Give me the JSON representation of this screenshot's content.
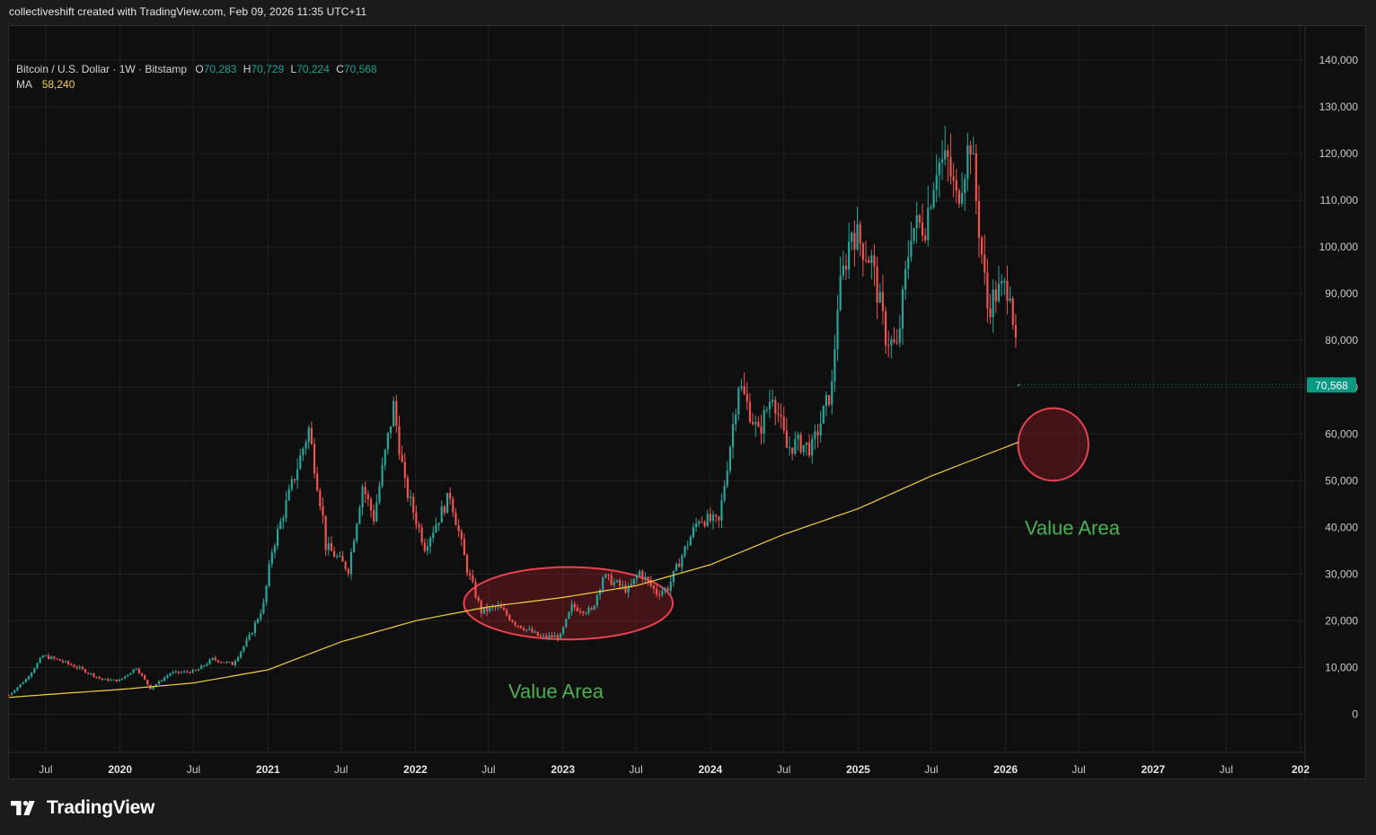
{
  "header": {
    "text": "collectiveshift created with TradingView.com, Feb 09, 2026 11:35 UTC+11"
  },
  "legend": {
    "symbol": "Bitcoin / U.S. Dollar · 1W · Bitstamp",
    "o_label": "O",
    "o_value": "70,283",
    "h_label": "H",
    "h_value": "70,729",
    "l_label": "L",
    "l_value": "70,224",
    "c_label": "C",
    "c_value": "70,568",
    "ma_label": "MA",
    "ma_value": "58,240"
  },
  "price_tag": "70,568",
  "footer": {
    "brand": "TradingView",
    "logo_icon": "tradingview-logo-icon"
  },
  "colors": {
    "up": "#26a69a",
    "down": "#ef5350",
    "ma": "#f4d03f",
    "ellipse_stroke": "#e8424f",
    "annotation": "#4caf50",
    "price_tag_bg": "#089981"
  },
  "chart_data": {
    "type": "candlestick",
    "title": "Bitcoin / U.S. Dollar · 1W · Bitstamp",
    "x_range": [
      "2019-04-01",
      "2028-01-01"
    ],
    "ylim": [
      -8000,
      142000
    ],
    "y_ticks": [
      "0",
      "10,000",
      "20,000",
      "30,000",
      "40,000",
      "50,000",
      "60,000",
      "70,000",
      "80,000",
      "90,000",
      "100,000",
      "110,000",
      "120,000",
      "130,000",
      "140,000"
    ],
    "x_ticks": [
      {
        "date": "2019-07-01",
        "label": "Jul",
        "bold": false
      },
      {
        "date": "2020-01-01",
        "label": "2020",
        "bold": true
      },
      {
        "date": "2020-07-01",
        "label": "Jul",
        "bold": false
      },
      {
        "date": "2021-01-01",
        "label": "2021",
        "bold": true
      },
      {
        "date": "2021-07-01",
        "label": "Jul",
        "bold": false
      },
      {
        "date": "2022-01-01",
        "label": "2022",
        "bold": true
      },
      {
        "date": "2022-07-01",
        "label": "Jul",
        "bold": false
      },
      {
        "date": "2023-01-01",
        "label": "2023",
        "bold": true
      },
      {
        "date": "2023-07-01",
        "label": "Jul",
        "bold": false
      },
      {
        "date": "2024-01-01",
        "label": "2024",
        "bold": true
      },
      {
        "date": "2024-07-01",
        "label": "Jul",
        "bold": false
      },
      {
        "date": "2025-01-01",
        "label": "2025",
        "bold": true
      },
      {
        "date": "2025-07-01",
        "label": "Jul",
        "bold": false
      },
      {
        "date": "2026-01-01",
        "label": "2026",
        "bold": true
      },
      {
        "date": "2026-07-01",
        "label": "Jul",
        "bold": false
      },
      {
        "date": "2027-01-01",
        "label": "2027",
        "bold": true
      },
      {
        "date": "2027-07-01",
        "label": "Jul",
        "bold": false
      },
      {
        "date": "2028-01-01",
        "label": "202",
        "bold": true
      }
    ],
    "price_anchors": [
      [
        "2019-04-01",
        4100
      ],
      [
        "2019-05-13",
        7500
      ],
      [
        "2019-06-24",
        12500
      ],
      [
        "2019-08-05",
        11500
      ],
      [
        "2019-09-23",
        9800
      ],
      [
        "2019-11-18",
        7400
      ],
      [
        "2019-12-30",
        7200
      ],
      [
        "2020-02-10",
        10000
      ],
      [
        "2020-03-16",
        5500
      ],
      [
        "2020-05-04",
        8800
      ],
      [
        "2020-07-06",
        9200
      ],
      [
        "2020-08-17",
        11800
      ],
      [
        "2020-10-05",
        10700
      ],
      [
        "2020-11-16",
        16500
      ],
      [
        "2020-12-21",
        23500
      ],
      [
        "2021-01-11",
        35000
      ],
      [
        "2021-02-22",
        47000
      ],
      [
        "2021-04-12",
        61000
      ],
      [
        "2021-05-17",
        42000
      ],
      [
        "2021-05-24",
        36000
      ],
      [
        "2021-07-19",
        31000
      ],
      [
        "2021-08-23",
        49000
      ],
      [
        "2021-09-20",
        42000
      ],
      [
        "2021-11-08",
        66000
      ],
      [
        "2021-12-06",
        49000
      ],
      [
        "2022-01-24",
        36000
      ],
      [
        "2022-03-28",
        47000
      ],
      [
        "2022-05-09",
        31000
      ],
      [
        "2022-06-13",
        22000
      ],
      [
        "2022-07-25",
        23000
      ],
      [
        "2022-09-05",
        19500
      ],
      [
        "2022-11-07",
        16500
      ],
      [
        "2022-12-26",
        16700
      ],
      [
        "2023-01-23",
        23000
      ],
      [
        "2023-03-13",
        22000
      ],
      [
        "2023-04-10",
        29500
      ],
      [
        "2023-06-12",
        26500
      ],
      [
        "2023-07-10",
        30500
      ],
      [
        "2023-08-21",
        26000
      ],
      [
        "2023-09-18",
        27000
      ],
      [
        "2023-10-23",
        34000
      ],
      [
        "2023-12-04",
        42000
      ],
      [
        "2024-01-22",
        41000
      ],
      [
        "2024-02-26",
        62000
      ],
      [
        "2024-03-11",
        71000
      ],
      [
        "2024-04-29",
        60000
      ],
      [
        "2024-06-03",
        69000
      ],
      [
        "2024-07-08",
        57000
      ],
      [
        "2024-08-05",
        58000
      ],
      [
        "2024-09-09",
        57000
      ],
      [
        "2024-10-28",
        70000
      ],
      [
        "2024-11-11",
        88000
      ],
      [
        "2024-12-16",
        104000
      ],
      [
        "2025-01-13",
        100000
      ],
      [
        "2025-02-03",
        97000
      ],
      [
        "2025-03-10",
        81000
      ],
      [
        "2025-04-07",
        78000
      ],
      [
        "2025-05-12",
        104000
      ],
      [
        "2025-06-16",
        105000
      ],
      [
        "2025-07-14",
        118000
      ],
      [
        "2025-08-11",
        118000
      ],
      [
        "2025-09-01",
        110000
      ],
      [
        "2025-10-06",
        123000
      ],
      [
        "2025-10-20",
        110000
      ],
      [
        "2025-11-17",
        87000
      ],
      [
        "2025-12-08",
        90000
      ],
      [
        "2026-01-12",
        92000
      ],
      [
        "2026-01-26",
        78000
      ],
      [
        "2026-02-02",
        70568
      ]
    ],
    "ma_anchors": [
      [
        "2019-04-01",
        3600
      ],
      [
        "2019-07-01",
        4200
      ],
      [
        "2020-01-01",
        5300
      ],
      [
        "2020-07-01",
        6700
      ],
      [
        "2021-01-01",
        9500
      ],
      [
        "2021-07-01",
        15500
      ],
      [
        "2022-01-01",
        20000
      ],
      [
        "2022-07-01",
        23000
      ],
      [
        "2023-01-01",
        25000
      ],
      [
        "2023-07-01",
        27500
      ],
      [
        "2024-01-01",
        32000
      ],
      [
        "2024-07-01",
        38500
      ],
      [
        "2025-01-01",
        44000
      ],
      [
        "2025-07-01",
        51000
      ],
      [
        "2026-02-02",
        58240
      ]
    ],
    "last_candle": {
      "date": "2026-02-02",
      "open": 70283,
      "high": 70729,
      "low": 70224,
      "close": 70568
    },
    "ma_value": 58240,
    "annotations": [
      {
        "text": "Value Area",
        "anchor_date": "2022-12-15",
        "anchor_price": 5000
      },
      {
        "text": "Value Area",
        "anchor_date": "2026-06-15",
        "anchor_price": 40000
      }
    ],
    "ellipses": [
      {
        "start": "2022-05-01",
        "end": "2023-09-30",
        "low": 16000,
        "high": 31500
      },
      {
        "start": "2026-02-01",
        "end": "2026-07-25",
        "low": 50000,
        "high": 65500
      }
    ]
  }
}
